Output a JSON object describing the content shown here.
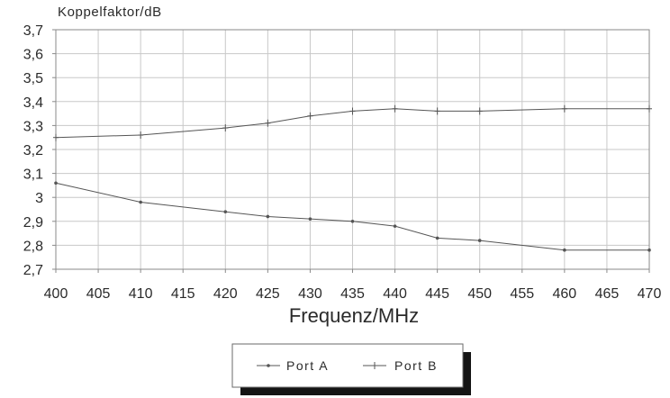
{
  "chart_data": {
    "type": "line",
    "title": "",
    "ylabel": "Koppelfaktor/dB",
    "xlabel": "Frequenz/MHz",
    "xlim": [
      400,
      470
    ],
    "ylim": [
      2.7,
      3.7
    ],
    "x_ticks": [
      "400",
      "405",
      "410",
      "415",
      "420",
      "425",
      "430",
      "435",
      "440",
      "445",
      "450",
      "455",
      "460",
      "465",
      "470"
    ],
    "y_ticks": [
      "2,7",
      "2,8",
      "2,9",
      "3",
      "3,1",
      "3,2",
      "3,3",
      "3,4",
      "3,5",
      "3,6",
      "3,7"
    ],
    "grid": true,
    "legend_position": "bottom-center",
    "series": [
      {
        "name": "Port A",
        "marker": "dot",
        "color": "#555555",
        "x": [
          400,
          410,
          420,
          425,
          430,
          435,
          440,
          445,
          450,
          460,
          470
        ],
        "values": [
          3.06,
          2.98,
          2.94,
          2.92,
          2.91,
          2.9,
          2.88,
          2.83,
          2.82,
          2.78,
          2.78
        ]
      },
      {
        "name": "Port B",
        "marker": "plus",
        "color": "#555555",
        "x": [
          400,
          410,
          420,
          425,
          430,
          435,
          440,
          445,
          450,
          460,
          470
        ],
        "values": [
          3.25,
          3.26,
          3.29,
          3.31,
          3.34,
          3.36,
          3.37,
          3.36,
          3.36,
          3.37,
          3.37
        ]
      }
    ]
  }
}
